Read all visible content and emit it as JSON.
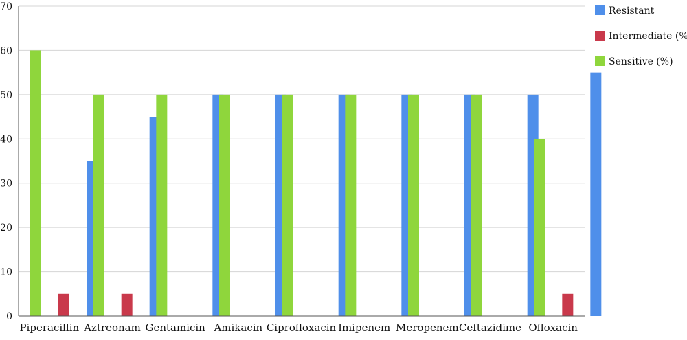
{
  "chart_data": {
    "type": "bar",
    "title": "",
    "xlabel": "",
    "ylabel": "",
    "ylim": [
      0,
      70
    ],
    "yticks": [
      0,
      10,
      20,
      30,
      40,
      50,
      60,
      70
    ],
    "grid": true,
    "legend_position": "top-right",
    "categories": [
      "Piperacillin",
      "Aztreonam",
      "Gentamicin",
      "Amikacin",
      "Ciprofloxacin",
      "Imipenem",
      "Meropenem",
      "Ceftazidime",
      "Ofloxacin"
    ],
    "series": [
      {
        "name": "Sensitive (%)",
        "color": "#8fd63c",
        "values": [
          60,
          50,
          50,
          50,
          50,
          50,
          50,
          50,
          40
        ]
      },
      {
        "name": "Intermediate (%)",
        "color": "#c9394b",
        "values": [
          5,
          5,
          0,
          0,
          0,
          0,
          0,
          0,
          5
        ]
      },
      {
        "name": "Resistant",
        "color": "#4f8fea",
        "values": [
          35,
          45,
          50,
          50,
          50,
          50,
          50,
          50,
          55
        ]
      }
    ],
    "legend_order": [
      "Resistant",
      "Intermediate (%)",
      "Sensitive (%)"
    ]
  }
}
